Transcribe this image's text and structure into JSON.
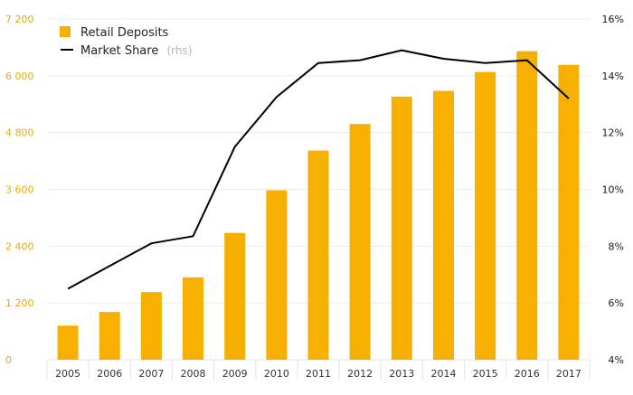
{
  "chart_data": {
    "type": "bar",
    "categories": [
      "2005",
      "2006",
      "2007",
      "2008",
      "2009",
      "2010",
      "2011",
      "2012",
      "2013",
      "2014",
      "2015",
      "2016",
      "2017"
    ],
    "series": [
      {
        "name": "Retail Deposits",
        "type": "bar",
        "axis": "left",
        "color": "#f7b000",
        "values": [
          720,
          1010,
          1430,
          1740,
          2680,
          3580,
          4420,
          4980,
          5560,
          5680,
          6080,
          6520,
          6230
        ]
      },
      {
        "name": "Market Share",
        "note": "(rhs)",
        "type": "line",
        "axis": "right",
        "color": "#000000",
        "values": [
          6.5,
          7.3,
          8.1,
          8.35,
          11.5,
          13.25,
          14.45,
          14.55,
          14.9,
          14.6,
          14.45,
          14.55,
          13.2
        ]
      }
    ],
    "y_left": {
      "ylim": [
        0,
        7200
      ],
      "ticks": [
        0,
        1200,
        2400,
        3600,
        4800,
        6000,
        7200
      ],
      "tick_labels": [
        "0",
        "1 200",
        "2 400",
        "3 600",
        "4 800",
        "6 000",
        "7 200"
      ],
      "tick_color": "#f0a800"
    },
    "y_right": {
      "ylim": [
        4,
        16
      ],
      "ticks": [
        4,
        6,
        8,
        10,
        12,
        14,
        16
      ],
      "tick_labels": [
        "4%",
        "6%",
        "8%",
        "10%",
        "12%",
        "14%",
        "16%"
      ]
    },
    "grid": true,
    "legend": "top-left",
    "title": "",
    "xlabel": "",
    "ylabel": ""
  }
}
